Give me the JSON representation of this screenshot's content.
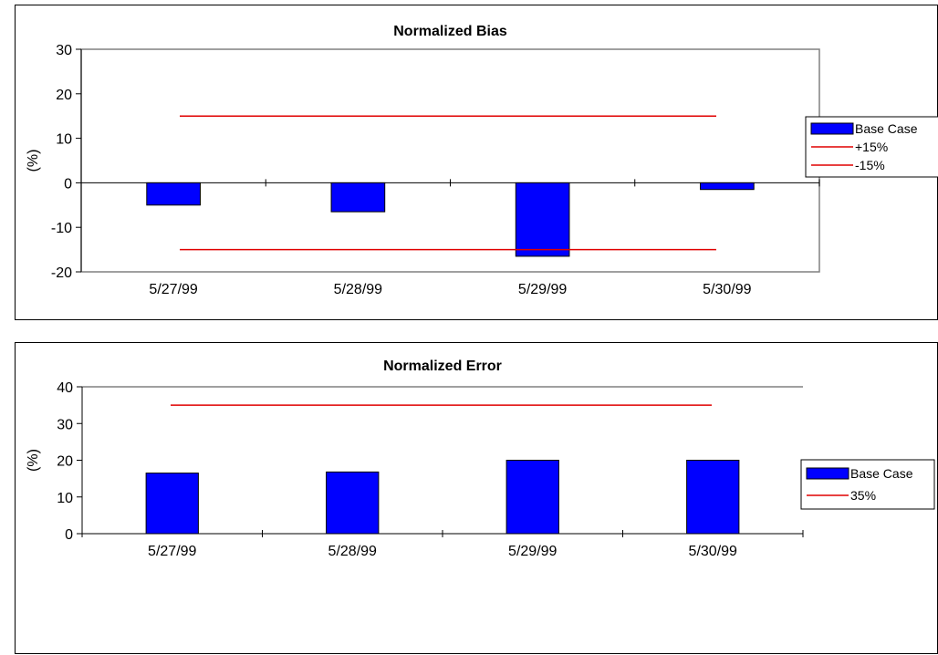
{
  "chart_data": [
    {
      "type": "bar",
      "title": "Normalized Bias",
      "xlabel": "",
      "ylabel": "(%)",
      "categories": [
        "5/27/99",
        "5/28/99",
        "5/29/99",
        "5/30/99"
      ],
      "ylim": [
        -20,
        30
      ],
      "yticks": [
        30,
        20,
        10,
        0,
        -10,
        -20
      ],
      "series": [
        {
          "name": "Base Case",
          "kind": "bar",
          "color": "#0000ff",
          "values": [
            -5,
            -6.5,
            -16.5,
            -1.5
          ]
        },
        {
          "name": "+15%",
          "kind": "hline",
          "color": "#e00000",
          "value": 15
        },
        {
          "name": "-15%",
          "kind": "hline",
          "color": "#e00000",
          "value": -15
        }
      ],
      "grid": false,
      "legend_position": "right",
      "plot_area_border": true
    },
    {
      "type": "bar",
      "title": "Normalized Error",
      "xlabel": "",
      "ylabel": "(%)",
      "categories": [
        "5/27/99",
        "5/28/99",
        "5/29/99",
        "5/30/99"
      ],
      "ylim": [
        0,
        40
      ],
      "yticks": [
        40,
        30,
        20,
        10,
        0
      ],
      "series": [
        {
          "name": "Base Case",
          "kind": "bar",
          "color": "#0000ff",
          "values": [
            16.5,
            16.8,
            20,
            20
          ]
        },
        {
          "name": "35%",
          "kind": "hline",
          "color": "#e00000",
          "value": 35
        }
      ],
      "grid": false,
      "legend_position": "right",
      "plot_area_border": false
    }
  ]
}
